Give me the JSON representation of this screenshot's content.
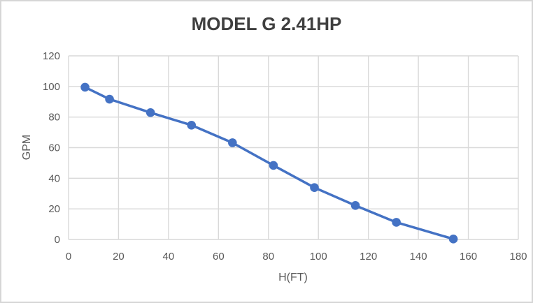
{
  "chart_data": {
    "type": "line",
    "title": "MODEL G 2.41HP",
    "xlabel": "H(FT)",
    "ylabel": "GPM",
    "x": [
      6.6,
      16.4,
      32.8,
      49.2,
      65.6,
      82.0,
      98.4,
      114.8,
      131.2,
      154.0
    ],
    "series": [
      {
        "name": "GPM",
        "values": [
          99.5,
          91.7,
          82.9,
          74.7,
          63.2,
          48.4,
          33.9,
          22.2,
          11.2,
          0.3
        ]
      }
    ],
    "xlim": [
      0,
      180
    ],
    "ylim": [
      0,
      120
    ],
    "x_ticks": [
      0,
      20,
      40,
      60,
      80,
      100,
      120,
      140,
      160,
      180
    ],
    "y_ticks": [
      0,
      20,
      40,
      60,
      80,
      100,
      120
    ],
    "grid": true,
    "legend_position": "none",
    "line_color": "#4472C4",
    "marker": "circle",
    "marker_radius": 6.3,
    "line_width": 3.5,
    "gridline_color": "#d9d9d9",
    "tick_label_color": "#595959",
    "title_color": "#3f3f3f"
  }
}
